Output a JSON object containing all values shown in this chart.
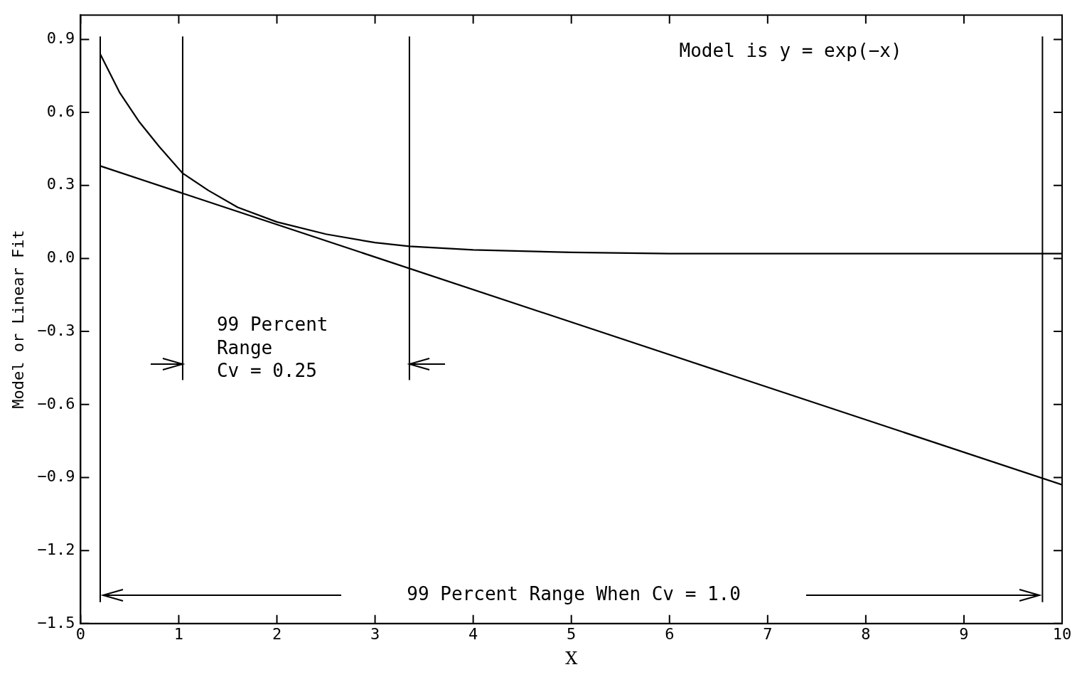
{
  "chart_data": {
    "type": "line",
    "xlabel": "X",
    "ylabel": "Model or Linear Fit",
    "xlim": [
      0,
      10
    ],
    "ylim": [
      -1.5,
      1.0
    ],
    "xticks": [
      0,
      1,
      2,
      3,
      4,
      5,
      6,
      7,
      8,
      9,
      10
    ],
    "yticks": [
      {
        "value": -1.5,
        "label": "−1.5"
      },
      {
        "value": -1.2,
        "label": "−1.2"
      },
      {
        "value": -0.9,
        "label": "−0.9"
      },
      {
        "value": -0.6,
        "label": "−0.6"
      },
      {
        "value": -0.3,
        "label": "−0.3"
      },
      {
        "value": 0,
        "label": "0.0"
      },
      {
        "value": 0.3,
        "label": "0.3"
      },
      {
        "value": 0.6,
        "label": "0.6"
      },
      {
        "value": 0.9,
        "label": "0.9"
      }
    ],
    "grid": false,
    "legend": false,
    "marker": "none",
    "line_style": "solid",
    "series": [
      {
        "color": "#000000",
        "x": [
          0.2,
          0.4,
          0.6,
          0.8,
          1.04,
          1.3,
          1.6,
          2,
          2.5,
          3,
          3.35,
          4,
          5,
          6,
          8,
          10
        ],
        "values": [
          0.84,
          0.68,
          0.56,
          0.46,
          0.35,
          0.28,
          0.21,
          0.15,
          0.1,
          0.065,
          0.05,
          0.035,
          0.025,
          0.02,
          0.02,
          0.02
        ]
      },
      {
        "color": "#000000",
        "x": [
          0.2,
          10
        ],
        "values": [
          0.38,
          -0.93
        ]
      }
    ],
    "ref_lines": [
      {
        "axis": "x",
        "value": 0.2,
        "color": "#000000"
      },
      {
        "axis": "x",
        "value": 1.04,
        "color": "#000000"
      },
      {
        "axis": "x",
        "value": 3.35,
        "color": "#000000"
      },
      {
        "axis": "x",
        "value": 9.8,
        "color": "#000000"
      }
    ],
    "annotations": [
      "Model is y = exp(−x)",
      "99 Percent\nRange\nCv = 0.25",
      "99 Percent Range When Cv = 1.0"
    ]
  }
}
